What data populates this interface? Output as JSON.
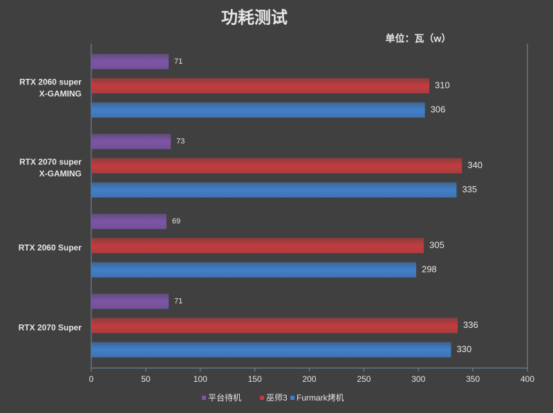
{
  "chart_data": {
    "type": "bar",
    "orientation": "horizontal",
    "title": "功耗测试",
    "subtitle": "单位：瓦（w）",
    "categories": [
      "RTX 2060 super\nX-GAMING",
      "RTX 2070 super\nX-GAMING",
      "RTX 2060 Super",
      "RTX 2070 Super"
    ],
    "series": [
      {
        "name": "平台待机",
        "color": "#7d55a8",
        "values": [
          71,
          73,
          69,
          71
        ]
      },
      {
        "name": "巫师3",
        "color": "#c43c3e",
        "values": [
          310,
          340,
          305,
          336
        ]
      },
      {
        "name": "Furmark烤机",
        "color": "#4080cc",
        "values": [
          306,
          335,
          298,
          330
        ]
      }
    ],
    "xlim": [
      0,
      400
    ],
    "xticks": [
      0,
      50,
      100,
      150,
      200,
      250,
      300,
      350,
      400
    ],
    "legend": "bottom"
  }
}
